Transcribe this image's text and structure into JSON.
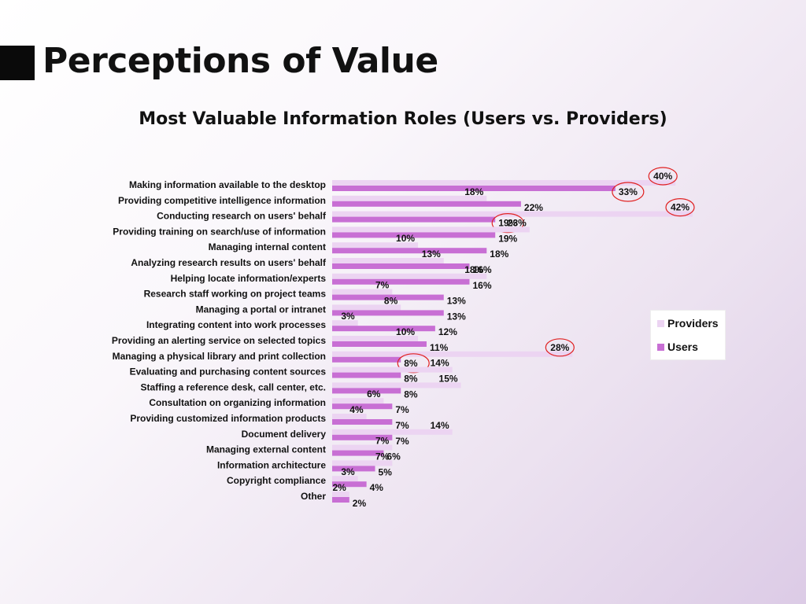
{
  "slide": {
    "title": "Perceptions of Value"
  },
  "colors": {
    "providers": "#ecd4f2",
    "users": "#c86fd4",
    "highlight": "#e02020"
  },
  "chart_data": {
    "type": "bar",
    "orientation": "horizontal",
    "title": "Most Valuable Information Roles (Users vs. Providers)",
    "xlim": [
      0,
      42
    ],
    "grid": false,
    "legend_position": "right",
    "categories": [
      "Making information available to the desktop",
      "Providing competitive intelligence information",
      "Conducting research on users' behalf",
      "Providing training on search/use of information",
      "Managing internal content",
      "Analyzing research results on users' behalf",
      "Helping locate information/experts",
      "Research staff working on project teams",
      "Managing a portal or intranet",
      "Integrating content into work processes",
      "Providing an alerting service on selected topics",
      "Managing a physical library and print collection",
      "Evaluating and purchasing content sources",
      "Staffing a reference desk, call center, etc.",
      "Consultation on organizing information",
      "Providing customized information products",
      "Document delivery",
      "Managing external content",
      "Information architecture",
      "Copyright compliance",
      "Other"
    ],
    "series": [
      {
        "name": "Providers",
        "values": [
          40,
          18,
          42,
          23,
          10,
          13,
          18,
          7,
          8,
          3,
          10,
          28,
          14,
          15,
          6,
          4,
          14,
          7,
          7,
          3,
          2
        ]
      },
      {
        "name": "Users",
        "values": [
          33,
          22,
          19,
          19,
          18,
          16,
          16,
          13,
          13,
          12,
          11,
          8,
          8,
          8,
          7,
          7,
          7,
          6,
          5,
          4,
          2
        ]
      }
    ],
    "value_labels": {
      "Providers": [
        "40%",
        "18%",
        "42%",
        "23%",
        "10%",
        "13%",
        "18%",
        "7%",
        "8%",
        "3%",
        "10%",
        "28%",
        "14%",
        "15%",
        "6%",
        "4%",
        "14%",
        "7%",
        "7%",
        "3%",
        "2%"
      ],
      "Users": [
        "33%",
        "22%",
        "19%",
        "19%",
        "18%",
        "16%",
        "16%",
        "13%",
        "13%",
        "12%",
        "11%",
        "8%",
        "8%",
        "8%",
        "7%",
        "7%",
        "7%",
        "6%",
        "5%",
        "4%",
        "2%"
      ]
    },
    "highlighted": [
      {
        "series": "Providers",
        "category_index": 0
      },
      {
        "series": "Users",
        "category_index": 0
      },
      {
        "series": "Providers",
        "category_index": 2
      },
      {
        "series": "Users",
        "category_index": 2
      },
      {
        "series": "Providers",
        "category_index": 11
      },
      {
        "series": "Users",
        "category_index": 11
      }
    ]
  }
}
